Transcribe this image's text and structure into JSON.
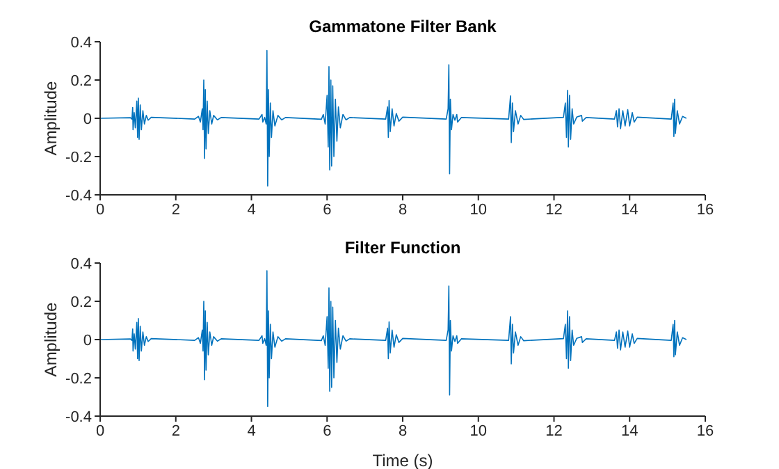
{
  "chart_data": [
    {
      "type": "line",
      "title": "Gammatone Filter Bank",
      "ylabel": "Amplitude",
      "xlim": [
        0,
        16
      ],
      "xticks": [
        0,
        2,
        4,
        6,
        8,
        10,
        12,
        14,
        16
      ],
      "ylim": [
        -0.4,
        0.4
      ],
      "yticks": [
        -0.4,
        -0.2,
        0,
        0.2,
        0.4
      ],
      "grid": false,
      "legend": false,
      "marker": "none",
      "line_style": "solid",
      "series": [
        {
          "color": "#0072bd",
          "x": [
            0,
            0.8,
            0.84,
            0.86,
            0.87,
            0.9,
            0.93,
            0.97,
            0.99,
            1.01,
            1.03,
            1.06,
            1.09,
            1.13,
            1.17,
            1.22,
            1.27,
            1.35,
            2.5,
            2.6,
            2.65,
            2.7,
            2.72,
            2.74,
            2.76,
            2.78,
            2.8,
            2.83,
            2.86,
            2.9,
            2.95,
            3.0,
            3.1,
            3.2,
            4.2,
            4.28,
            4.3,
            4.35,
            4.39,
            4.41,
            4.43,
            4.45,
            4.47,
            4.5,
            4.53,
            4.57,
            4.62,
            4.7,
            4.8,
            4.9,
            5.85,
            5.9,
            5.95,
            6.0,
            6.03,
            6.05,
            6.07,
            6.1,
            6.12,
            6.15,
            6.18,
            6.22,
            6.26,
            6.3,
            6.35,
            6.42,
            6.5,
            6.6,
            7.55,
            7.6,
            7.62,
            7.64,
            7.67,
            7.72,
            7.77,
            7.83,
            7.9,
            8.0,
            9.15,
            9.2,
            9.22,
            9.24,
            9.26,
            9.29,
            9.33,
            9.38,
            9.43,
            9.45,
            9.55,
            10.8,
            10.85,
            10.87,
            10.9,
            10.93,
            10.98,
            11.05,
            11.12,
            11.2,
            12.25,
            12.3,
            12.33,
            12.36,
            12.38,
            12.41,
            12.44,
            12.48,
            12.52,
            12.6,
            12.73,
            12.75,
            12.85,
            13.6,
            13.65,
            13.68,
            13.72,
            13.76,
            13.82,
            13.88,
            13.95,
            14.0,
            14.07,
            14.12,
            14.2,
            15.1,
            15.15,
            15.17,
            15.19,
            15.21,
            15.26,
            15.32,
            15.4,
            15.5
          ],
          "values": [
            0,
            0.003,
            -0.004,
            0.056,
            -0.06,
            0.03,
            -0.05,
            0.09,
            -0.1,
            0.105,
            -0.11,
            0.07,
            -0.06,
            0.04,
            -0.03,
            0.015,
            -0.01,
            0.005,
            -0.004,
            0.01,
            -0.02,
            0.05,
            -0.06,
            0.2,
            -0.21,
            0.15,
            -0.16,
            0.09,
            -0.08,
            0.04,
            -0.03,
            0.015,
            -0.008,
            0.004,
            -0.004,
            0.02,
            -0.02,
            0.005,
            -0.03,
            0.354,
            -0.354,
            0.15,
            -0.2,
            0.08,
            -0.1,
            0.04,
            -0.04,
            0.015,
            -0.008,
            0.004,
            -0.005,
            0.02,
            -0.03,
            0.12,
            -0.15,
            0.27,
            -0.27,
            0.2,
            -0.25,
            0.17,
            -0.2,
            0.1,
            -0.12,
            0.06,
            -0.05,
            0.02,
            -0.008,
            0.004,
            -0.004,
            0.06,
            -0.1,
            0.093,
            -0.07,
            0.05,
            -0.04,
            0.025,
            -0.015,
            0.006,
            -0.004,
            0.05,
            0.28,
            -0.29,
            0.1,
            -0.06,
            0.02,
            -0.01,
            0.02,
            -0.02,
            0.004,
            -0.004,
            0.117,
            -0.127,
            0.08,
            -0.07,
            0.04,
            -0.03,
            0.015,
            -0.006,
            0.005,
            0.08,
            -0.1,
            0.146,
            -0.15,
            0.12,
            -0.11,
            0.05,
            -0.03,
            0.006,
            0.015,
            -0.015,
            0.004,
            -0.004,
            0.04,
            -0.045,
            0.05,
            -0.054,
            0.04,
            -0.04,
            0.045,
            -0.04,
            0.03,
            -0.02,
            0.006,
            -0.004,
            0.08,
            -0.095,
            0.1,
            -0.08,
            0.04,
            -0.03,
            0.01,
            0
          ]
        }
      ]
    },
    {
      "type": "line",
      "title": "Filter Function",
      "xlabel": "Time (s)",
      "ylabel": "Amplitude",
      "xlim": [
        0,
        16
      ],
      "xticks": [
        0,
        2,
        4,
        6,
        8,
        10,
        12,
        14,
        16
      ],
      "ylim": [
        -0.4,
        0.4
      ],
      "yticks": [
        -0.4,
        -0.2,
        0,
        0.2,
        0.4
      ],
      "grid": false,
      "legend": false,
      "marker": "none",
      "line_style": "solid",
      "series": [
        {
          "color": "#0072bd",
          "x": [
            0,
            0.8,
            0.84,
            0.86,
            0.87,
            0.9,
            0.93,
            0.97,
            0.99,
            1.01,
            1.03,
            1.06,
            1.09,
            1.13,
            1.17,
            1.22,
            1.27,
            1.35,
            2.5,
            2.6,
            2.65,
            2.7,
            2.72,
            2.74,
            2.76,
            2.78,
            2.8,
            2.83,
            2.86,
            2.9,
            2.95,
            3.0,
            3.1,
            3.2,
            4.2,
            4.28,
            4.3,
            4.35,
            4.39,
            4.41,
            4.43,
            4.45,
            4.47,
            4.5,
            4.53,
            4.57,
            4.62,
            4.7,
            4.8,
            4.9,
            5.85,
            5.9,
            5.95,
            6.0,
            6.03,
            6.05,
            6.07,
            6.1,
            6.12,
            6.15,
            6.18,
            6.22,
            6.26,
            6.3,
            6.35,
            6.42,
            6.5,
            6.6,
            7.55,
            7.6,
            7.62,
            7.64,
            7.67,
            7.72,
            7.77,
            7.83,
            7.9,
            8.0,
            9.15,
            9.2,
            9.22,
            9.24,
            9.26,
            9.29,
            9.33,
            9.38,
            9.43,
            9.45,
            9.55,
            10.8,
            10.85,
            10.87,
            10.9,
            10.93,
            10.98,
            11.05,
            11.12,
            11.2,
            12.25,
            12.3,
            12.33,
            12.36,
            12.38,
            12.41,
            12.44,
            12.48,
            12.52,
            12.6,
            12.73,
            12.75,
            12.85,
            13.6,
            13.65,
            13.68,
            13.72,
            13.76,
            13.82,
            13.88,
            13.95,
            14.0,
            14.07,
            14.12,
            14.2,
            15.1,
            15.15,
            15.17,
            15.19,
            15.21,
            15.26,
            15.32,
            15.4,
            15.5
          ],
          "values": [
            0,
            0.003,
            -0.004,
            0.055,
            -0.06,
            0.03,
            -0.05,
            0.09,
            -0.1,
            0.11,
            -0.11,
            0.07,
            -0.06,
            0.04,
            -0.03,
            0.015,
            -0.01,
            0.005,
            -0.004,
            0.01,
            -0.02,
            0.05,
            -0.06,
            0.2,
            -0.21,
            0.15,
            -0.16,
            0.09,
            -0.08,
            0.04,
            -0.03,
            0.015,
            -0.008,
            0.004,
            -0.004,
            0.02,
            -0.02,
            0.005,
            -0.03,
            0.36,
            -0.35,
            0.15,
            -0.2,
            0.08,
            -0.1,
            0.04,
            -0.04,
            0.015,
            -0.008,
            0.004,
            -0.005,
            0.02,
            -0.03,
            0.12,
            -0.15,
            0.27,
            -0.27,
            0.2,
            -0.25,
            0.17,
            -0.2,
            0.1,
            -0.12,
            0.06,
            -0.05,
            0.02,
            -0.008,
            0.004,
            -0.004,
            0.06,
            -0.1,
            0.093,
            -0.07,
            0.05,
            -0.04,
            0.025,
            -0.015,
            0.006,
            -0.004,
            0.05,
            0.28,
            -0.29,
            0.1,
            -0.06,
            0.02,
            -0.01,
            0.02,
            -0.02,
            0.004,
            -0.004,
            0.12,
            -0.127,
            0.08,
            -0.07,
            0.04,
            -0.03,
            0.015,
            -0.006,
            0.005,
            0.08,
            -0.1,
            0.15,
            -0.15,
            0.12,
            -0.11,
            0.05,
            -0.03,
            0.006,
            0.015,
            -0.015,
            0.004,
            -0.004,
            0.04,
            -0.045,
            0.05,
            -0.054,
            0.04,
            -0.04,
            0.045,
            -0.04,
            0.03,
            -0.02,
            0.006,
            -0.004,
            0.08,
            -0.09,
            0.1,
            -0.08,
            0.04,
            -0.03,
            0.01,
            0
          ]
        }
      ]
    }
  ]
}
